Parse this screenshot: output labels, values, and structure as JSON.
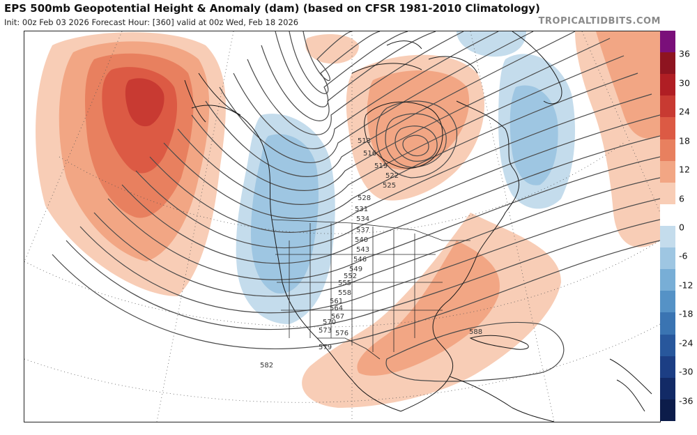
{
  "header": {
    "title": "EPS 500mb Geopotential Height & Anomaly (dam) (based on CFSR 1981-2010 Climatology)",
    "subtitle": "Init: 00z Feb 03 2026   Forecast Hour: [360]   valid at 00z Wed, Feb 18 2026",
    "credit": "TROPICALTIDBITS.COM"
  },
  "colorbar": {
    "labels": [
      "36",
      "30",
      "24",
      "18",
      "12",
      "6",
      "0",
      "-6",
      "-12",
      "-18",
      "-24",
      "-30",
      "-36"
    ],
    "colors": [
      "#7a0f7a",
      "#8e1420",
      "#b01e24",
      "#c83a32",
      "#dc5a44",
      "#e8805f",
      "#f2a684",
      "#f8cdb6",
      "#ffffff",
      "#c4dcec",
      "#9ec6e2",
      "#78aed6",
      "#5592c6",
      "#3a74b2",
      "#28579c",
      "#1c3e84",
      "#122a66",
      "#0c1c4a"
    ]
  },
  "height_labels": [
    "513",
    "516",
    "519",
    "522",
    "525",
    "528",
    "531",
    "534",
    "537",
    "540",
    "543",
    "546",
    "549",
    "552",
    "555",
    "558",
    "561",
    "564",
    "567",
    "570",
    "573",
    "576",
    "579",
    "582",
    "588"
  ]
}
